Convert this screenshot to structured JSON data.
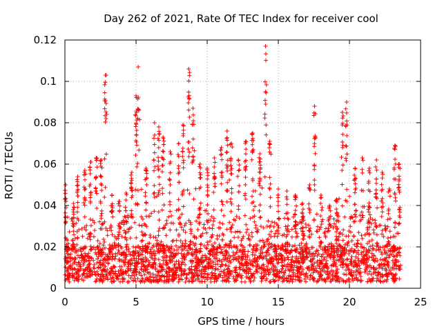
{
  "chart_data": {
    "type": "scatter",
    "title": "Day 262 of 2021, Rate Of TEC Index for receiver cool",
    "xlabel": "GPS time / hours",
    "ylabel": "ROTI / TECUs",
    "xlim": [
      0,
      25
    ],
    "ylim": [
      0,
      0.12
    ],
    "x_ticks": [
      0,
      5,
      10,
      15,
      20,
      25
    ],
    "x_tick_labels": [
      "0",
      "5",
      "10",
      "15",
      "20",
      "25"
    ],
    "y_ticks": [
      0,
      0.02,
      0.04,
      0.06,
      0.08,
      0.1,
      0.12
    ],
    "y_tick_labels": [
      "0",
      "0.02",
      "0.04",
      "0.06",
      "0.08",
      "0.1",
      "0.12"
    ],
    "grid": true,
    "marker": "plus",
    "color": "#ff0000",
    "data_x_range": [
      0,
      23.6
    ],
    "baseline_level": 0.012,
    "peaks": [
      {
        "x": 0.05,
        "y": 0.05
      },
      {
        "x": 0.6,
        "y": 0.041
      },
      {
        "x": 0.9,
        "y": 0.054
      },
      {
        "x": 1.4,
        "y": 0.057
      },
      {
        "x": 1.8,
        "y": 0.061
      },
      {
        "x": 2.2,
        "y": 0.063
      },
      {
        "x": 2.55,
        "y": 0.062
      },
      {
        "x": 2.85,
        "y": 0.103
      },
      {
        "x": 3.3,
        "y": 0.045
      },
      {
        "x": 3.8,
        "y": 0.042
      },
      {
        "x": 4.3,
        "y": 0.046
      },
      {
        "x": 4.7,
        "y": 0.056
      },
      {
        "x": 5.0,
        "y": 0.093
      },
      {
        "x": 5.15,
        "y": 0.107
      },
      {
        "x": 5.7,
        "y": 0.058
      },
      {
        "x": 6.3,
        "y": 0.08
      },
      {
        "x": 6.6,
        "y": 0.078
      },
      {
        "x": 6.9,
        "y": 0.073
      },
      {
        "x": 7.4,
        "y": 0.066
      },
      {
        "x": 8.0,
        "y": 0.07
      },
      {
        "x": 8.3,
        "y": 0.079
      },
      {
        "x": 8.7,
        "y": 0.106
      },
      {
        "x": 9.0,
        "y": 0.087
      },
      {
        "x": 9.5,
        "y": 0.06
      },
      {
        "x": 10.0,
        "y": 0.058
      },
      {
        "x": 10.5,
        "y": 0.063
      },
      {
        "x": 11.0,
        "y": 0.068
      },
      {
        "x": 11.4,
        "y": 0.076
      },
      {
        "x": 11.7,
        "y": 0.07
      },
      {
        "x": 12.2,
        "y": 0.062
      },
      {
        "x": 12.7,
        "y": 0.071
      },
      {
        "x": 13.2,
        "y": 0.075
      },
      {
        "x": 13.7,
        "y": 0.065
      },
      {
        "x": 14.1,
        "y": 0.117
      },
      {
        "x": 14.4,
        "y": 0.071
      },
      {
        "x": 15.0,
        "y": 0.048
      },
      {
        "x": 15.6,
        "y": 0.047
      },
      {
        "x": 16.2,
        "y": 0.045
      },
      {
        "x": 16.7,
        "y": 0.041
      },
      {
        "x": 17.2,
        "y": 0.05
      },
      {
        "x": 17.55,
        "y": 0.088
      },
      {
        "x": 18.0,
        "y": 0.045
      },
      {
        "x": 18.6,
        "y": 0.04
      },
      {
        "x": 19.1,
        "y": 0.043
      },
      {
        "x": 19.5,
        "y": 0.085
      },
      {
        "x": 19.8,
        "y": 0.09
      },
      {
        "x": 20.4,
        "y": 0.058
      },
      {
        "x": 20.9,
        "y": 0.063
      },
      {
        "x": 21.4,
        "y": 0.058
      },
      {
        "x": 21.9,
        "y": 0.062
      },
      {
        "x": 22.3,
        "y": 0.056
      },
      {
        "x": 22.8,
        "y": 0.048
      },
      {
        "x": 23.2,
        "y": 0.069
      },
      {
        "x": 23.5,
        "y": 0.06
      }
    ]
  }
}
